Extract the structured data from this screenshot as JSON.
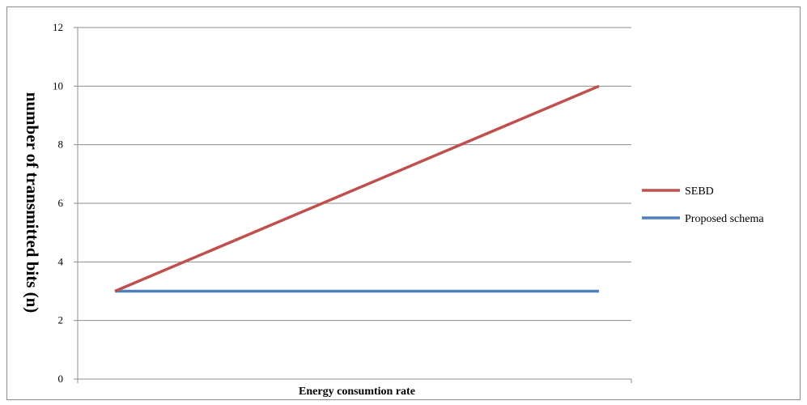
{
  "chart_data": {
    "type": "line",
    "title": "",
    "xlabel": "Energy consumtion rate",
    "ylabel": "number of transmitted bits (n)",
    "ylim": [
      0,
      12
    ],
    "yticks": [
      0,
      2,
      4,
      6,
      8,
      10,
      12
    ],
    "grid": true,
    "legend_position": "right",
    "x": [
      1,
      2
    ],
    "series": [
      {
        "name": "SEBD",
        "color": "#c0504d",
        "values": [
          3,
          10
        ]
      },
      {
        "name": "Proposed schema",
        "color": "#4f81bd",
        "values": [
          3,
          3
        ]
      }
    ]
  }
}
